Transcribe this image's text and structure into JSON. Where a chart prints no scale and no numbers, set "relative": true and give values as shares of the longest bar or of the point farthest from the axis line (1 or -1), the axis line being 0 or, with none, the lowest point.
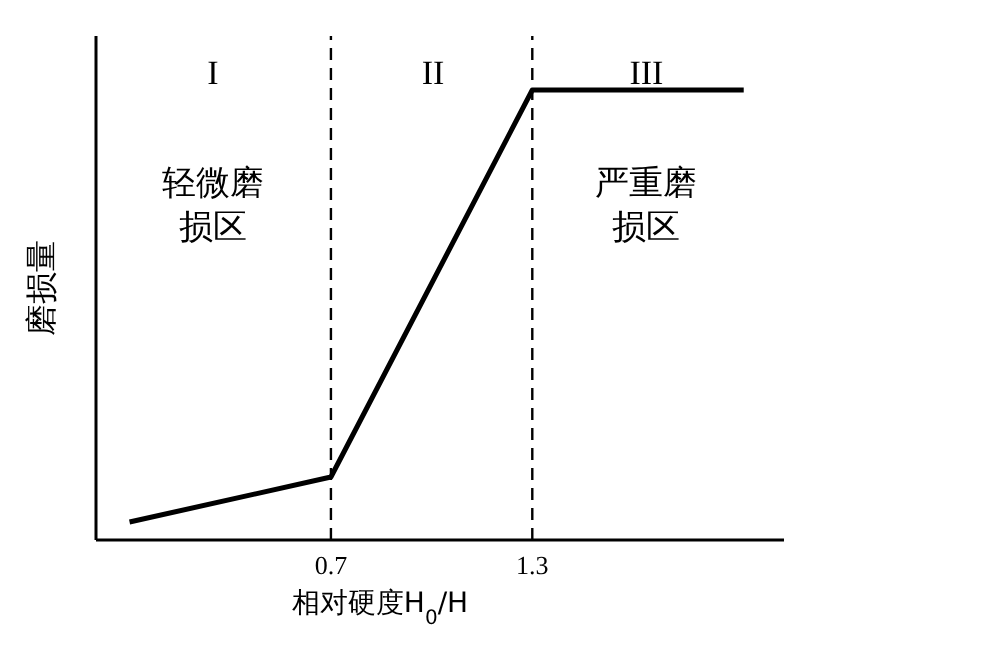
{
  "chart_data": {
    "type": "line",
    "relative": true,
    "xlabel": "相对硬度H$_{0}$/H",
    "ylabel": "磨损量",
    "x": [
      0.1,
      0.7,
      1.3,
      1.93
    ],
    "series": [
      {
        "color": "#000000",
        "values": [
          0.04,
          0.14,
          1,
          1
        ]
      }
    ],
    "xlim": [
      0,
      2.05
    ],
    "xticks": [
      0.7,
      1.3
    ],
    "ref_lines": [
      {
        "axis": "x",
        "value": 0.7,
        "line_style": "dashed",
        "color": "#000000"
      },
      {
        "axis": "x",
        "value": 1.3,
        "line_style": "dashed",
        "color": "#000000"
      }
    ],
    "annotations": [
      "I",
      "II",
      "III",
      "轻微磨损区",
      "严重磨损区"
    ],
    "grid": false,
    "legend": false,
    "marker": "none",
    "line_style": "solid"
  }
}
